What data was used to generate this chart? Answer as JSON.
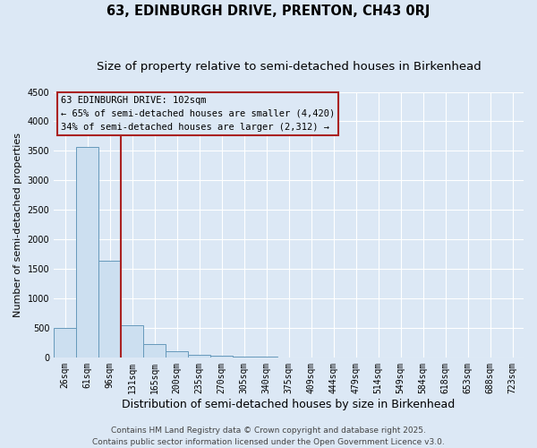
{
  "title": "63, EDINBURGH DRIVE, PRENTON, CH43 0RJ",
  "subtitle": "Size of property relative to semi-detached houses in Birkenhead",
  "xlabel": "Distribution of semi-detached houses by size in Birkenhead",
  "ylabel": "Number of semi-detached properties",
  "categories": [
    "26sqm",
    "61sqm",
    "96sqm",
    "131sqm",
    "165sqm",
    "200sqm",
    "235sqm",
    "270sqm",
    "305sqm",
    "340sqm",
    "375sqm",
    "409sqm",
    "444sqm",
    "479sqm",
    "514sqm",
    "549sqm",
    "584sqm",
    "618sqm",
    "653sqm",
    "688sqm",
    "723sqm"
  ],
  "values": [
    500,
    3570,
    1640,
    540,
    230,
    105,
    50,
    22,
    12,
    8,
    5,
    3,
    2,
    1,
    1,
    1,
    0,
    0,
    0,
    0,
    0
  ],
  "bar_color": "#ccdff0",
  "bar_edge_color": "#6699bb",
  "highlight_color": "#aa2222",
  "highlight_bar_index": 2,
  "ylim": [
    0,
    4500
  ],
  "yticks": [
    0,
    500,
    1000,
    1500,
    2000,
    2500,
    3000,
    3500,
    4000,
    4500
  ],
  "annotation_title": "63 EDINBURGH DRIVE: 102sqm",
  "annotation_line1": "← 65% of semi-detached houses are smaller (4,420)",
  "annotation_line2": "34% of semi-detached houses are larger (2,312) →",
  "footer_line1": "Contains HM Land Registry data © Crown copyright and database right 2025.",
  "footer_line2": "Contains public sector information licensed under the Open Government Licence v3.0.",
  "bg_color": "#dce8f5",
  "grid_color": "#ffffff",
  "title_fontsize": 10.5,
  "subtitle_fontsize": 9.5,
  "tick_fontsize": 7,
  "ylabel_fontsize": 8,
  "xlabel_fontsize": 9,
  "footer_fontsize": 6.5,
  "ann_fontsize": 7.5
}
